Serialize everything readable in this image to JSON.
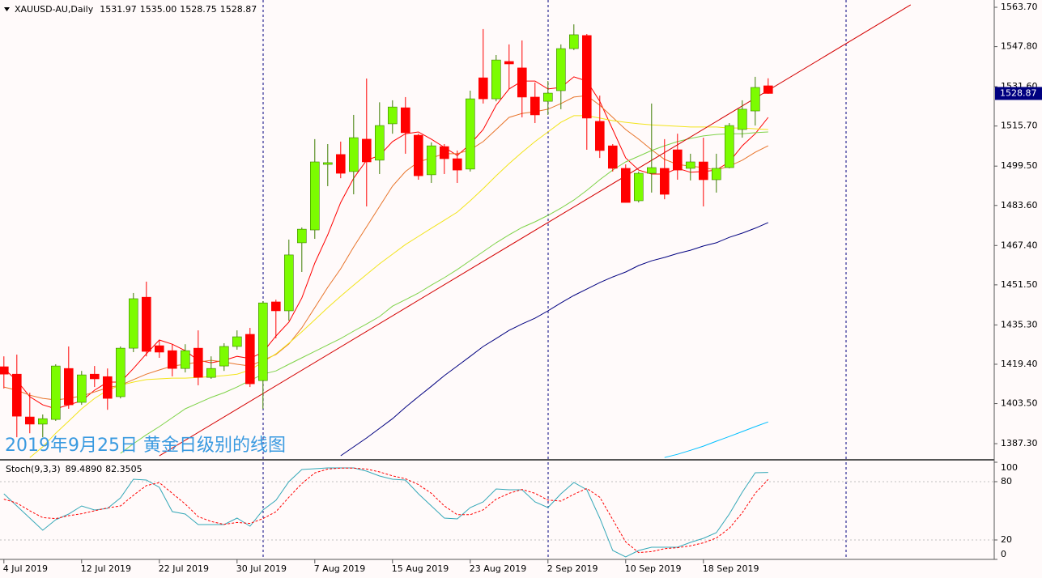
{
  "chart_data": [
    {
      "type": "candlestick",
      "title": "XAUUSD-AU,Daily",
      "annotation": "2019年9月25日 黄金日级别的线图",
      "categories": [
        "4 Jul 2019",
        null,
        null,
        null,
        null,
        null,
        "12 Jul 2019",
        null,
        null,
        null,
        null,
        null,
        "22 Jul 2019",
        null,
        null,
        null,
        null,
        null,
        "30 Jul 2019",
        null,
        null,
        null,
        null,
        null,
        "7 Aug 2019",
        null,
        null,
        null,
        null,
        null,
        "15 Aug 2019",
        null,
        null,
        null,
        null,
        null,
        "23 Aug 2019",
        null,
        null,
        null,
        null,
        null,
        "2 Sep 2019",
        null,
        null,
        null,
        null,
        null,
        "10 Sep 2019",
        null,
        null,
        null,
        null,
        null,
        "18 Sep 2019",
        null,
        null,
        null,
        null,
        null
      ],
      "open": [
        1418.4,
        1415.4,
        1398.1,
        1395.2,
        1397.1,
        1417.7,
        1404.0,
        1415.4,
        1414.4,
        1406.3,
        1425.9,
        1446.5,
        1426.9,
        1424.9,
        1417.7,
        1425.9,
        1414.1,
        1418.7,
        1426.6,
        1431.5,
        1412.8,
        1444.6,
        1441.0,
        1468.5,
        1473.7,
        1500.2,
        1504.2,
        1497.3,
        1510.4,
        1501.9,
        1516.6,
        1523.1,
        1512.0,
        1496.0,
        1507.4,
        1502.5,
        1498.3,
        1535.2,
        1526.7,
        1541.8,
        1539.2,
        1527.4,
        1525.7,
        1530.0,
        1547.0,
        1552.3,
        1517.6,
        1507.7,
        1498.6,
        1485.5,
        1496.6,
        1498.6,
        1506.1,
        1498.6,
        1501.2,
        1494.0,
        1498.9,
        1514.3,
        1521.8,
        1531.97
      ],
      "high": [
        1422.6,
        1423.3,
        1407.9,
        1399.1,
        1419.4,
        1426.6,
        1416.7,
        1418.7,
        1417.7,
        1426.6,
        1448.2,
        1452.8,
        1429.2,
        1427.5,
        1427.5,
        1433.1,
        1422.6,
        1427.9,
        1433.1,
        1434.1,
        1444.9,
        1445.5,
        1469.8,
        1474.7,
        1510.4,
        1508.4,
        1509.4,
        1520.2,
        1534.9,
        1525.3,
        1526.1,
        1527.4,
        1512.6,
        1509.1,
        1508.4,
        1505.8,
        1530.0,
        1554.9,
        1544.4,
        1548.7,
        1550.3,
        1533.3,
        1533.9,
        1548.7,
        1556.8,
        1552.9,
        1528.0,
        1508.4,
        1500.2,
        1497.3,
        1524.8,
        1510.4,
        1512.6,
        1504.5,
        1511.0,
        1504.5,
        1516.9,
        1526.1,
        1535.6,
        1535
      ],
      "high_labels": [
        null,
        null,
        null,
        null,
        null,
        null,
        null,
        null,
        null,
        null,
        null,
        null,
        null,
        null,
        null,
        null,
        null,
        null,
        null,
        null,
        null,
        null,
        null,
        null,
        null,
        null,
        null,
        null,
        null,
        null,
        null,
        null,
        null,
        null,
        null,
        null,
        null,
        null,
        null,
        null,
        null,
        null,
        null,
        null,
        null,
        null,
        null,
        null,
        null,
        null,
        null,
        null,
        null,
        null,
        null,
        null,
        null,
        null,
        null,
        "1535.00"
      ],
      "low": [
        1409.6,
        1389.9,
        1391.5,
        1389.9,
        1396.5,
        1401.4,
        1403.0,
        1410.2,
        1401.0,
        1405.6,
        1424.3,
        1422.6,
        1422.0,
        1414.5,
        1416.1,
        1410.9,
        1413.5,
        1416.7,
        1425.3,
        1410.2,
        1401.4,
        1429.9,
        1437.0,
        1456.7,
        1470.1,
        1491.4,
        1494.6,
        1488.1,
        1483.2,
        1496.3,
        1512.6,
        1504.5,
        1494.0,
        1492.7,
        1496.3,
        1492.7,
        1497.3,
        1524.8,
        1525.7,
        1530.6,
        1519.2,
        1516.9,
        1520.2,
        1522.5,
        1546.4,
        1506.1,
        1502.8,
        1497.3,
        1484.8,
        1484.8,
        1488.8,
        1486.1,
        1494.0,
        1493.7,
        1483.2,
        1488.8,
        1498.6,
        1511.0,
        1515.9,
        1528.75
      ],
      "close": [
        1415.4,
        1398.4,
        1395.2,
        1397.4,
        1418.7,
        1403.0,
        1415.1,
        1413.5,
        1405.6,
        1425.9,
        1445.9,
        1424.6,
        1424.3,
        1417.7,
        1424.9,
        1414.1,
        1417.7,
        1426.6,
        1430.5,
        1411.5,
        1444.2,
        1441.0,
        1463.6,
        1474.0,
        1501.2,
        1500.9,
        1496.6,
        1511.0,
        1501.2,
        1515.9,
        1523.4,
        1513.0,
        1495.6,
        1507.7,
        1502.5,
        1497.9,
        1526.7,
        1526.7,
        1542.4,
        1540.8,
        1527.4,
        1520.2,
        1529.0,
        1547.0,
        1552.6,
        1518.9,
        1505.8,
        1498.6,
        1484.8,
        1496.6,
        1498.9,
        1488.1,
        1497.9,
        1501.2,
        1494.0,
        1498.6,
        1515.9,
        1522.5,
        1531.3,
        1528.87
      ],
      "up_color": "#7cfc00",
      "down_color": "#ff0000",
      "xlim": [
        -0.3,
        76.45
      ],
      "ylim": [
        1381.1,
        1566.65
      ],
      "yticks": [
        {
          "value": 1387.3,
          "label": "1387.30"
        },
        {
          "value": 1403.5,
          "label": "1403.50"
        },
        {
          "value": 1419.4,
          "label": "1419.40"
        },
        {
          "value": 1435.3,
          "label": "1435.30"
        },
        {
          "value": 1451.5,
          "label": "1451.50"
        },
        {
          "value": 1467.4,
          "label": "1467.40"
        },
        {
          "value": 1483.6,
          "label": "1483.60"
        },
        {
          "value": 1499.5,
          "label": "1499.50"
        },
        {
          "value": 1515.7,
          "label": "1515.70"
        },
        {
          "value": 1531.6,
          "label": "1531.60"
        },
        {
          "value": 1547.8,
          "label": "1547.80"
        },
        {
          "value": 1563.7,
          "label": "1563.70"
        }
      ],
      "overlays": [
        {
          "color": "#ff0000",
          "values": [
            1417.7,
            1412.8,
            1406.3,
            1403.0,
            1401.4,
            1403.0,
            1404.6,
            1408.9,
            1412.2,
            1412.2,
            1417.7,
            1423.6,
            1429.2,
            1427.5,
            1424.9,
            1421.0,
            1420.0,
            1421.0,
            1422.6,
            1421.7,
            1424.3,
            1430.8,
            1436.4,
            1446.2,
            1460.3,
            1471.7,
            1484.8,
            1494.6,
            1501.9,
            1503.8,
            1509.4,
            1512.6,
            1513.3,
            1510.4,
            1507.1,
            1503.8,
            1508.4,
            1514.3,
            1524.1,
            1530.7,
            1533.9,
            1533.9,
            1530.7,
            1531.3,
            1535.6,
            1533.9,
            1525.7,
            1514.3,
            1502.8,
            1497.9,
            1496.3,
            1496.3,
            1498.6,
            1497.0,
            1497.3,
            1497.9,
            1501.2,
            1507.7,
            1512.6,
            1519.2
          ]
        },
        {
          "color": "#e8742a",
          "values": [
            1410.2,
            1408.9,
            1406.9,
            1405.6,
            1405.0,
            1405.6,
            1406.6,
            1408.2,
            1409.9,
            1410.9,
            1413.2,
            1415.4,
            1417.1,
            1418.7,
            1419.4,
            1420.3,
            1421.0,
            1420.3,
            1419.4,
            1418.7,
            1421.0,
            1423.3,
            1427.6,
            1434.1,
            1442.3,
            1450.5,
            1458.0,
            1466.8,
            1475.0,
            1483.2,
            1491.4,
            1497.3,
            1501.2,
            1502.8,
            1504.5,
            1504.5,
            1506.1,
            1509.4,
            1514.3,
            1519.2,
            1520.8,
            1521.5,
            1522.5,
            1524.8,
            1527.4,
            1528.0,
            1524.1,
            1519.2,
            1514.3,
            1510.4,
            1506.1,
            1502.2,
            1500.2,
            1499.5,
            1498.9,
            1497.9,
            1499.5,
            1501.9,
            1505.1,
            1507.7
          ]
        },
        {
          "color": "#f2e41a",
          "values": [
            null,
            null,
            1381.7,
            1386.0,
            1391.5,
            1396.4,
            1401.4,
            1405.6,
            1408.9,
            1410.9,
            1412.2,
            1413.2,
            1413.5,
            1413.8,
            1413.8,
            1414.1,
            1414.4,
            1414.8,
            1415.4,
            1417.1,
            1420.3,
            1423.6,
            1427.9,
            1432.5,
            1437.4,
            1442.3,
            1446.9,
            1451.4,
            1455.7,
            1460.0,
            1463.9,
            1467.8,
            1471.1,
            1474.4,
            1477.6,
            1480.9,
            1485.5,
            1490.4,
            1495.6,
            1500.5,
            1505.1,
            1509.4,
            1513.3,
            1517.2,
            1519.9,
            1519.9,
            1518.9,
            1517.9,
            1517.2,
            1516.6,
            1516.2,
            1515.9,
            1515.6,
            1515.3,
            1515.3,
            1515.3,
            1514.9,
            1514.9,
            1514.6,
            1514.3
          ]
        },
        {
          "color": "#7ed348",
          "values": [
            null,
            null,
            null,
            null,
            null,
            null,
            null,
            null,
            null,
            1383.4,
            1387.3,
            1390.9,
            1394.2,
            1397.8,
            1401.4,
            1403.7,
            1406.0,
            1407.9,
            1410.2,
            1412.8,
            1415.4,
            1416.7,
            1419.4,
            1422.0,
            1424.6,
            1427.2,
            1429.8,
            1432.8,
            1435.7,
            1438.7,
            1442.9,
            1445.5,
            1448.2,
            1451.4,
            1454.4,
            1457.7,
            1461.3,
            1464.9,
            1468.5,
            1471.7,
            1474.7,
            1477.0,
            1479.6,
            1482.5,
            1485.8,
            1489.7,
            1494.0,
            1497.9,
            1501.2,
            1503.5,
            1505.8,
            1507.7,
            1509.4,
            1510.7,
            1511.7,
            1512.3,
            1512.6,
            1512.6,
            1513.0,
            1513.3
          ]
        },
        {
          "color": "#000080",
          "values": [
            null,
            null,
            null,
            null,
            null,
            null,
            null,
            null,
            null,
            null,
            null,
            null,
            null,
            null,
            null,
            null,
            null,
            null,
            null,
            null,
            null,
            null,
            null,
            null,
            null,
            null,
            1382.4,
            1386.0,
            1389.6,
            1393.5,
            1397.4,
            1402.0,
            1406.3,
            1410.5,
            1414.8,
            1418.7,
            1422.6,
            1426.6,
            1429.8,
            1433.1,
            1435.7,
            1438.0,
            1441.0,
            1444.2,
            1447.2,
            1449.8,
            1452.4,
            1454.7,
            1456.7,
            1459.3,
            1461.2,
            1462.6,
            1464.2,
            1465.5,
            1467.2,
            1468.5,
            1470.7,
            1472.4,
            1474.4,
            1476.7
          ]
        },
        {
          "color": "#00bfff",
          "values": [
            null,
            null,
            null,
            null,
            null,
            null,
            null,
            null,
            null,
            null,
            null,
            null,
            null,
            null,
            null,
            null,
            null,
            null,
            null,
            null,
            null,
            null,
            null,
            null,
            null,
            null,
            null,
            null,
            null,
            null,
            null,
            null,
            null,
            null,
            null,
            null,
            null,
            null,
            null,
            null,
            null,
            null,
            null,
            null,
            null,
            null,
            null,
            null,
            null,
            null,
            null,
            1381.7,
            1383.0,
            1384.6,
            1386.3,
            1388.3,
            1390.2,
            1392.2,
            1394.2,
            1396.1
          ]
        }
      ],
      "trendline": {
        "color": "#d40000",
        "x": [
          12,
          70
        ],
        "y": [
          1382.4,
          1564.7
        ]
      }
    },
    {
      "type": "line",
      "title": "Stoch(9,3,3)",
      "ylim": [
        0,
        100
      ],
      "yticks": [
        0,
        20,
        80,
        100
      ],
      "series": [
        {
          "color": "#35a8b8",
          "dash": false,
          "values": [
            67.5,
            55.0,
            42.5,
            30.0,
            40.8,
            46.7,
            55.0,
            50.8,
            52.5,
            63.3,
            82.5,
            81.7,
            74.2,
            49.2,
            46.7,
            35.8,
            35.8,
            35.8,
            42.5,
            34.2,
            50.8,
            60.8,
            80.0,
            92.5,
            93.3,
            94.2,
            94.2,
            94.2,
            90.8,
            85.8,
            82.5,
            81.7,
            67.5,
            55.0,
            42.5,
            41.7,
            53.3,
            59.2,
            72.5,
            71.7,
            71.7,
            59.2,
            53.3,
            67.5,
            79.2,
            71.7,
            42.5,
            9.2,
            2.5,
            9.2,
            12.5,
            12.5,
            12.5,
            17.5,
            21.7,
            27.5,
            46.7,
            69.2,
            89.2,
            89.489
          ],
          "value_labels": [
            null,
            null,
            null,
            null,
            null,
            null,
            null,
            null,
            null,
            null,
            null,
            null,
            null,
            null,
            null,
            null,
            null,
            null,
            null,
            null,
            null,
            null,
            null,
            null,
            null,
            null,
            null,
            null,
            null,
            null,
            null,
            null,
            null,
            null,
            null,
            null,
            null,
            null,
            null,
            null,
            null,
            null,
            null,
            null,
            null,
            null,
            null,
            null,
            null,
            null,
            null,
            null,
            null,
            null,
            null,
            null,
            null,
            null,
            null,
            "89.4890"
          ]
        },
        {
          "color": "#ff0000",
          "dash": true,
          "values": [
            62,
            58,
            50,
            43,
            42,
            45,
            47,
            50,
            53,
            55,
            66,
            76,
            79,
            68,
            57,
            44,
            39,
            36,
            38,
            37,
            42,
            49,
            64,
            78,
            89,
            93,
            94,
            94,
            93,
            90,
            86,
            83,
            77,
            68,
            55,
            46,
            46,
            51,
            62,
            68,
            72,
            68,
            61,
            60,
            67,
            73,
            64,
            41,
            18,
            7,
            8,
            11,
            12,
            14,
            17,
            22,
            32,
            48,
            68,
            82.3505
          ],
          "value_labels": [
            null,
            null,
            null,
            null,
            null,
            null,
            null,
            null,
            null,
            null,
            null,
            null,
            null,
            null,
            null,
            null,
            null,
            null,
            null,
            null,
            null,
            null,
            null,
            null,
            null,
            null,
            null,
            null,
            null,
            null,
            null,
            null,
            null,
            null,
            null,
            null,
            null,
            null,
            null,
            null,
            null,
            null,
            null,
            null,
            null,
            null,
            null,
            null,
            null,
            null,
            null,
            null,
            null,
            null,
            null,
            null,
            null,
            null,
            null,
            "82.3505"
          ]
        }
      ]
    }
  ]
}
